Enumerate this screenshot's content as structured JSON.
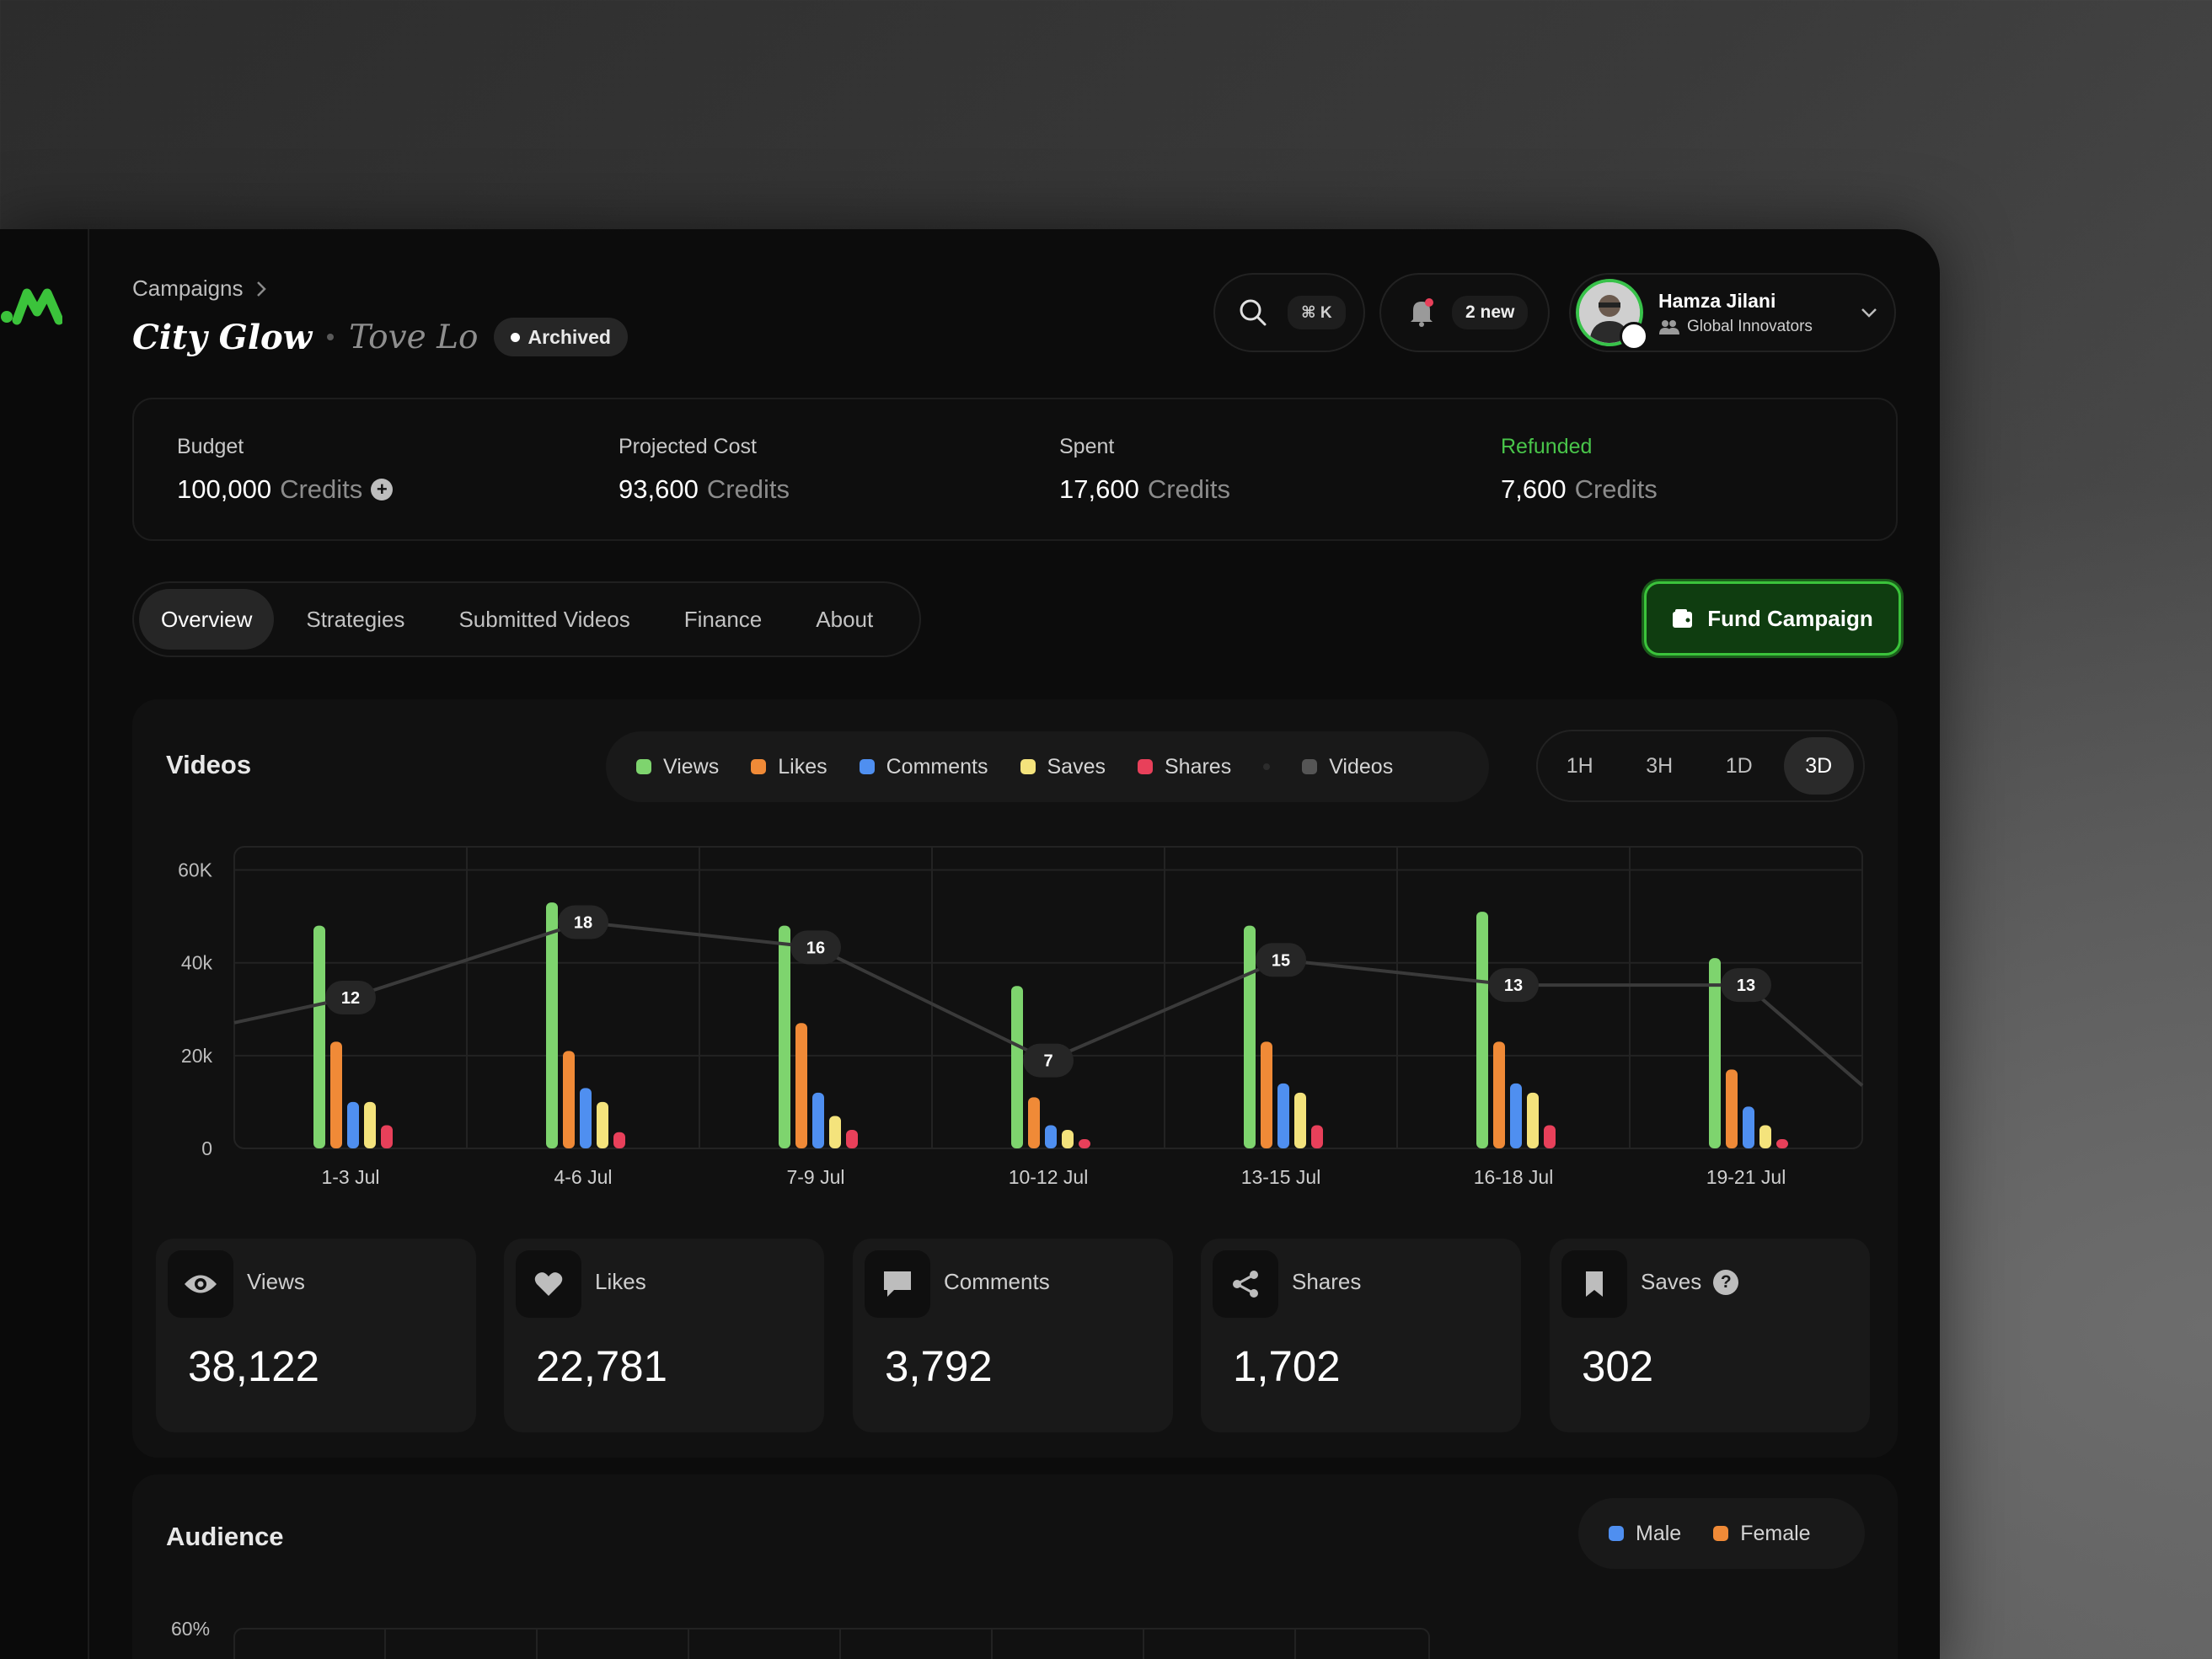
{
  "breadcrumb": {
    "parent": "Campaigns"
  },
  "campaign": {
    "title": "City Glow",
    "artist": "Tove Lo",
    "status": "Archived"
  },
  "search": {
    "shortcut": "⌘ K"
  },
  "notifications": {
    "label": "2 new"
  },
  "user": {
    "name": "Hamza Jilani",
    "org": "Global Innovators"
  },
  "stats": [
    {
      "label": "Budget",
      "value": "100,000",
      "unit": "Credits"
    },
    {
      "label": "Projected Cost",
      "value": "93,600",
      "unit": "Credits"
    },
    {
      "label": "Spent",
      "value": "17,600",
      "unit": "Credits"
    },
    {
      "label": "Refunded",
      "value": "7,600",
      "unit": "Credits"
    }
  ],
  "tabs": [
    "Overview",
    "Strategies",
    "Submitted Videos",
    "Finance",
    "About"
  ],
  "fund_button": "Fund Campaign",
  "videos": {
    "title": "Videos",
    "legend": [
      "Views",
      "Likes",
      "Comments",
      "Saves",
      "Shares",
      "Videos"
    ],
    "ranges": [
      "1H",
      "3H",
      "1D",
      "3D"
    ],
    "active_range": "3D"
  },
  "colors": {
    "views": "#7ed46e",
    "likes": "#f08a37",
    "comments": "#4f8ff0",
    "saves": "#f4e37c",
    "shares": "#e8405a",
    "videos": "#555555",
    "accent": "#3bc33b",
    "refunded": "#49c54a"
  },
  "chart_data": {
    "type": "bar",
    "categories": [
      "1-3 Jul",
      "4-6 Jul",
      "7-9 Jul",
      "10-12 Jul",
      "13-15 Jul",
      "16-18 Jul",
      "19-21 Jul"
    ],
    "y_ticks": [
      "60K",
      "40k",
      "20k",
      "0"
    ],
    "ylim": [
      0,
      65000
    ],
    "series": [
      {
        "name": "Views",
        "values": [
          48000,
          53000,
          48000,
          35000,
          48000,
          51000,
          41000
        ]
      },
      {
        "name": "Likes",
        "values": [
          23000,
          21000,
          27000,
          11000,
          23000,
          23000,
          17000
        ]
      },
      {
        "name": "Comments",
        "values": [
          10000,
          13000,
          12000,
          5000,
          14000,
          14000,
          9000
        ]
      },
      {
        "name": "Saves",
        "values": [
          10000,
          10000,
          7000,
          4000,
          12000,
          12000,
          5000
        ]
      },
      {
        "name": "Shares",
        "values": [
          5000,
          3500,
          4000,
          2000,
          5000,
          5000,
          2000
        ]
      }
    ],
    "line": {
      "name": "Videos",
      "values": [
        12,
        18,
        16,
        7,
        15,
        13,
        13
      ],
      "ylim": [
        0,
        24
      ],
      "start": 10,
      "end": 5
    },
    "grid": true
  },
  "metrics": [
    {
      "label": "Views",
      "value": "38,122",
      "icon": "eye-icon"
    },
    {
      "label": "Likes",
      "value": "22,781",
      "icon": "heart-icon"
    },
    {
      "label": "Comments",
      "value": "3,792",
      "icon": "comment-icon"
    },
    {
      "label": "Shares",
      "value": "1,702",
      "icon": "share-icon"
    },
    {
      "label": "Saves",
      "value": "302",
      "icon": "bookmark-icon"
    }
  ],
  "audience": {
    "title": "Audience",
    "legend": [
      "Male",
      "Female"
    ],
    "y_tick": "60%"
  }
}
